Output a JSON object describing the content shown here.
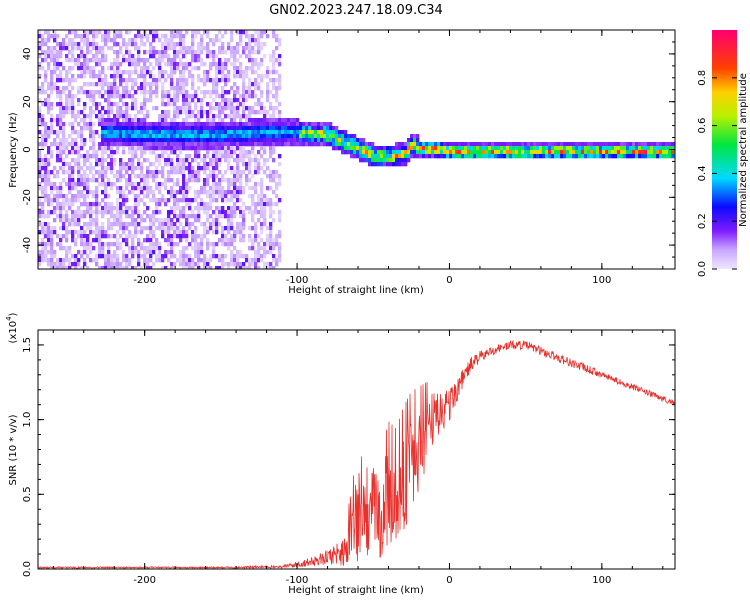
{
  "title": "GN02.2023.247.18.09.C34",
  "chart_data": [
    {
      "type": "heatmap",
      "xlabel": "Height of straight line (km)",
      "ylabel": "Frequency (Hz)",
      "xlim": [
        -270,
        148
      ],
      "ylim": [
        -50,
        50
      ],
      "x_ticks": [
        -200,
        -100,
        0,
        100
      ],
      "y_ticks": [
        -40,
        -20,
        0,
        20,
        40
      ],
      "colorbar": {
        "label": "Normalized spectral amplitude",
        "range": [
          0,
          1
        ],
        "ticks": [
          "0.0",
          "0.2",
          "0.4",
          "0.6",
          "0.8"
        ],
        "colormap": "rainbow (white-lavender at 0, violet, blue, cyan, green, yellow, orange, red, magenta at 1)"
      },
      "ridge": {
        "description": "Frequency ridge of the signal vs height",
        "x": [
          -230,
          -200,
          -150,
          -120,
          -100,
          -90,
          -80,
          -70,
          -60,
          -50,
          -40,
          -30,
          -25,
          -20,
          -10,
          0,
          20,
          50,
          100,
          148
        ],
        "frequency": [
          8,
          7,
          7,
          8,
          8,
          7,
          7,
          4,
          1,
          -2,
          -2,
          -1,
          3,
          1,
          1,
          0,
          0,
          0,
          0,
          0
        ]
      },
      "noise_region": {
        "x_from": -270,
        "x_to": -112,
        "frequency_range": [
          -50,
          50
        ],
        "amplitude": "low (scattered violet speckle)"
      }
    },
    {
      "type": "line",
      "xlabel": "Height of straight line (km)",
      "ylabel": "SNR (10 * v/v)",
      "y_multiplier_label": "(x10",
      "y_multiplier_exponent": "4",
      "y_multiplier_close": ")",
      "xlim": [
        -270,
        148
      ],
      "ylim": [
        0,
        1.6
      ],
      "x_ticks": [
        -200,
        -100,
        0,
        100
      ],
      "y_ticks": [
        "0.0",
        "0.5",
        "1.0",
        "1.5"
      ],
      "color": "#e8302c",
      "series": [
        {
          "x": [
            -270,
            -200,
            -150,
            -110,
            -100,
            -90,
            -80,
            -70,
            -65,
            -60,
            -55,
            -50,
            -45,
            -40,
            -35,
            -30,
            -25,
            -20,
            -15,
            -10,
            -5,
            0,
            5,
            10,
            15,
            20,
            30,
            40,
            50,
            60,
            70,
            80,
            90,
            100,
            110,
            120,
            130,
            140,
            148
          ],
          "y": [
            0.01,
            0.01,
            0.01,
            0.015,
            0.03,
            0.05,
            0.08,
            0.12,
            0.2,
            0.35,
            0.3,
            0.4,
            0.35,
            0.5,
            0.45,
            0.6,
            0.7,
            0.8,
            0.9,
            1.0,
            1.05,
            1.1,
            1.2,
            1.3,
            1.38,
            1.42,
            1.47,
            1.5,
            1.5,
            1.46,
            1.42,
            1.38,
            1.34,
            1.3,
            1.26,
            1.22,
            1.18,
            1.14,
            1.11
          ],
          "noise_amplitude": [
            0.005,
            0.005,
            0.005,
            0.01,
            0.02,
            0.03,
            0.05,
            0.1,
            0.2,
            0.35,
            0.25,
            0.3,
            0.3,
            0.35,
            0.35,
            0.35,
            0.35,
            0.3,
            0.25,
            0.2,
            0.15,
            0.12,
            0.08,
            0.06,
            0.05,
            0.04,
            0.03,
            0.03,
            0.03,
            0.03,
            0.03,
            0.03,
            0.03,
            0.02,
            0.02,
            0.02,
            0.02,
            0.02,
            0.02
          ]
        }
      ]
    }
  ]
}
